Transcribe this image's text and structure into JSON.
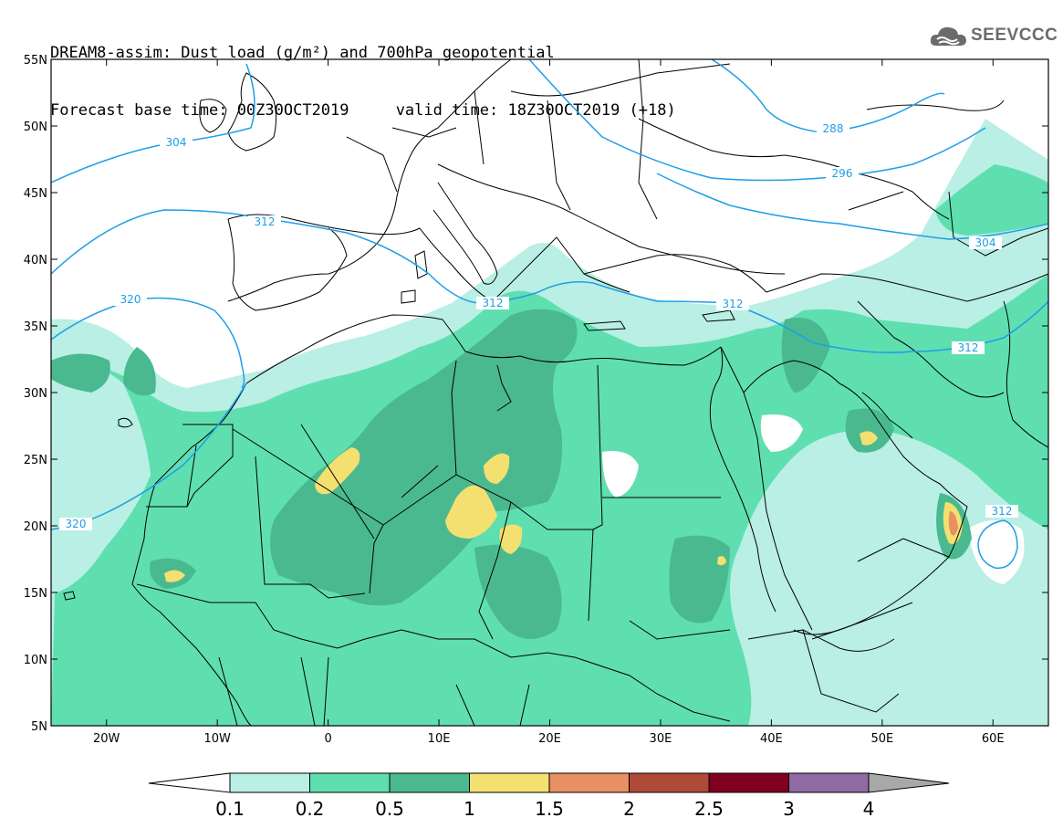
{
  "header": {
    "title_line1": "DREAM8-assim: Dust load (g/m²) and 700hPa geopotential",
    "title_line2": "Forecast base time: 00Z30OCT2019     valid time: 18Z30OCT2019 (+18)"
  },
  "logo": {
    "text": "SEEVCCC",
    "icon": "cloud-icon"
  },
  "map": {
    "lon_range": [
      -25,
      65
    ],
    "lat_range": [
      5,
      55
    ],
    "lat_ticks": [
      "55N",
      "50N",
      "45N",
      "40N",
      "35N",
      "30N",
      "25N",
      "20N",
      "15N",
      "10N",
      "5N"
    ],
    "lon_ticks": [
      "20W",
      "10W",
      "0",
      "10E",
      "20E",
      "30E",
      "40E",
      "50E",
      "60E"
    ],
    "contour_color": "#1e9ee8",
    "contour_labels": [
      "304",
      "312",
      "320",
      "288",
      "296",
      "304",
      "312",
      "312",
      "312",
      "320",
      "312"
    ]
  },
  "colorbar": {
    "labels": [
      "0.1",
      "0.2",
      "0.5",
      "1",
      "1.5",
      "2",
      "2.5",
      "3",
      "4"
    ],
    "colors": [
      "#b9efe4",
      "#5fdfb0",
      "#4bb990",
      "#f3e070",
      "#e88f64",
      "#b04a38",
      "#800020",
      "#8f6aa3",
      "#a8a8a8"
    ]
  }
}
